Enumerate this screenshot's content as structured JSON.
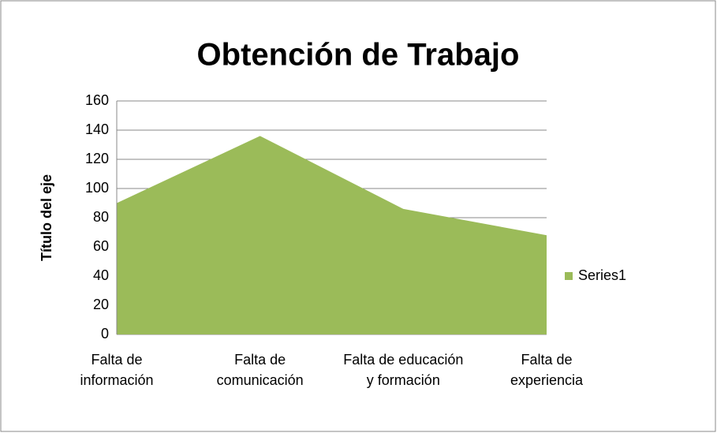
{
  "chart_data": {
    "type": "area",
    "title": "Obtención de Trabajo",
    "y_label": "Título del eje",
    "categories": [
      "Falta de información",
      "Falta de comunicación",
      "Falta de educación y formación",
      "Falta de experiencia"
    ],
    "series": [
      {
        "name": "Series1",
        "color": "#9bbb59",
        "values": [
          90,
          136,
          86,
          68
        ]
      }
    ],
    "ylim": [
      0,
      160
    ],
    "yticks": [
      0,
      20,
      40,
      60,
      80,
      100,
      120,
      140,
      160
    ],
    "grid": true,
    "legend": "right"
  }
}
